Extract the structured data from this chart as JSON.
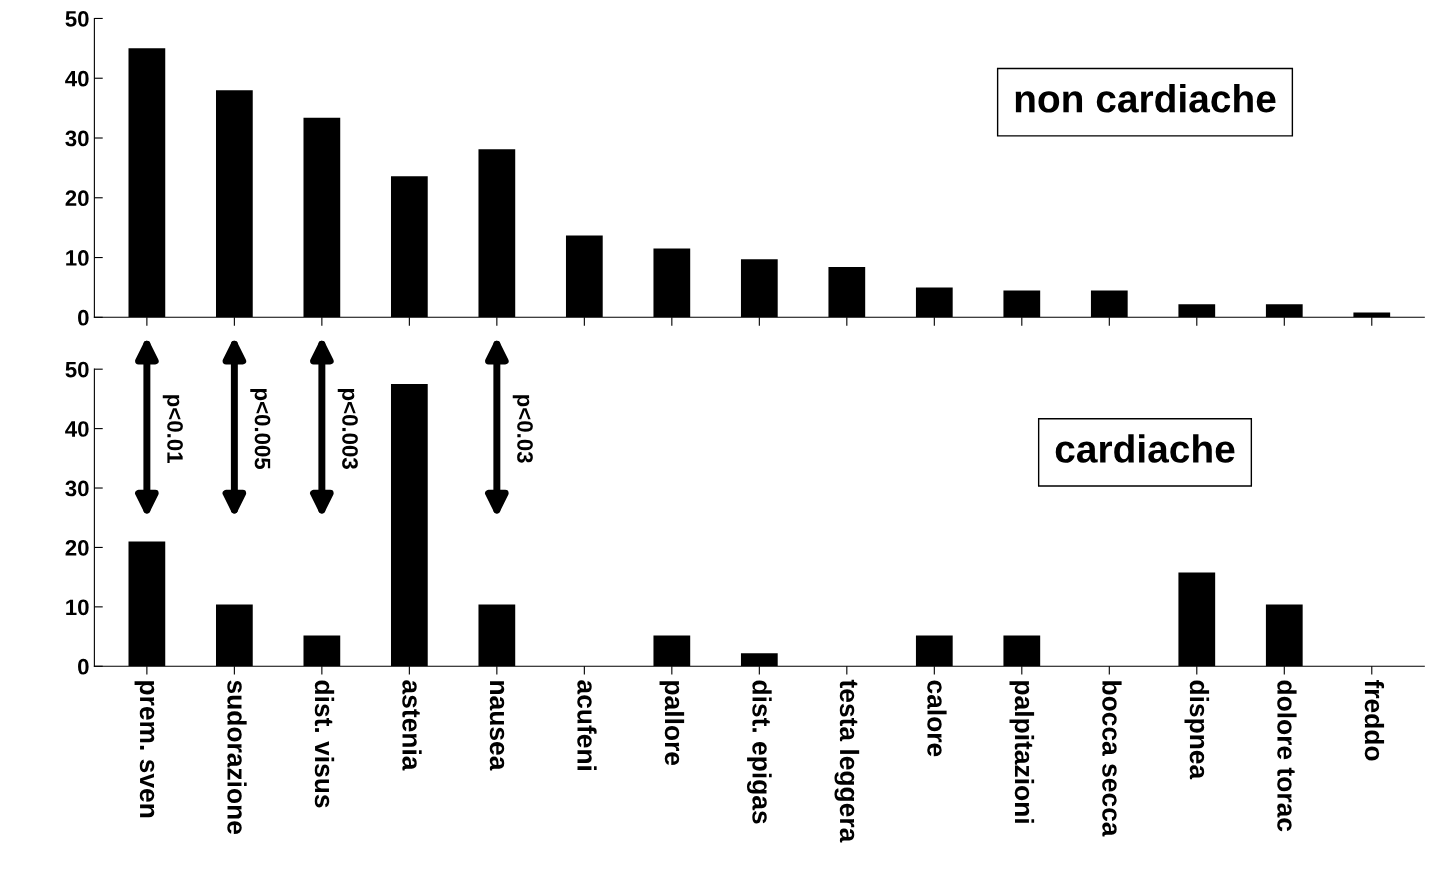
{
  "chart_data": [
    {
      "type": "bar",
      "title": "non cardiache",
      "categories": [
        null,
        null,
        null,
        null,
        null,
        null,
        null,
        null,
        null,
        null,
        null,
        null,
        null,
        null,
        null
      ],
      "values": [
        45,
        38,
        33.4,
        23.6,
        28.1,
        13.7,
        11.5,
        9.7,
        8.4,
        5,
        4.5,
        4.5,
        2.2,
        2.2,
        0.8
      ],
      "color": "#000000",
      "ylim": [
        0,
        50
      ],
      "yticks": [
        0,
        10,
        20,
        30,
        40,
        50
      ],
      "tick_labels": "y",
      "grid": false,
      "legend": false
    },
    {
      "type": "bar",
      "title": "cardiache",
      "categories": [
        "prem. sven",
        "sudorazione",
        "dist. visus",
        "astenia",
        "nausea",
        "acufeni",
        "pallore",
        "dist. epigas",
        "testa leggera",
        "calore",
        "palpitazioni",
        "bocca secca",
        "dispnea",
        "dolore torac",
        "freddo"
      ],
      "values": [
        21,
        10.4,
        5.2,
        47.5,
        10.4,
        0,
        5.2,
        2.2,
        0,
        5.2,
        5.2,
        0,
        15.8,
        10.4,
        0
      ],
      "color": "#000000",
      "ylim": [
        0,
        50
      ],
      "yticks": [
        0,
        10,
        20,
        30,
        40,
        50
      ],
      "grid": false,
      "legend": false,
      "annotations": [
        "p<0.01",
        "p<0.005",
        "p<0.003",
        "p<0.03"
      ]
    }
  ]
}
